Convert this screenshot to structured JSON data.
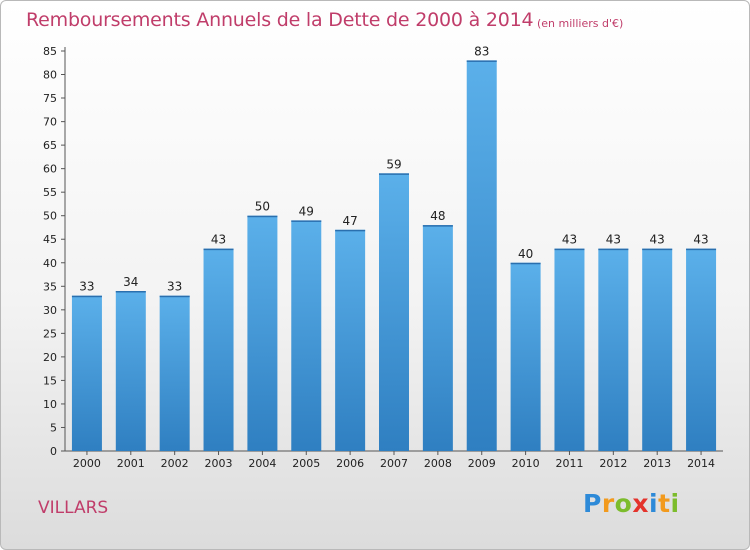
{
  "chart_data": {
    "type": "bar",
    "title": "Remboursements Annuels de la Dette de 2000 à 2014",
    "subtitle": "(en milliers d'€)",
    "categories": [
      "2000",
      "2001",
      "2002",
      "2003",
      "2004",
      "2005",
      "2006",
      "2007",
      "2008",
      "2009",
      "2010",
      "2011",
      "2012",
      "2013",
      "2014"
    ],
    "values": [
      33,
      34,
      33,
      43,
      50,
      49,
      47,
      59,
      48,
      83,
      40,
      43,
      43,
      43,
      43
    ],
    "ylim": [
      0,
      85
    ],
    "yticks": [
      "0",
      "5",
      "10",
      "15",
      "20",
      "25",
      "30",
      "35",
      "40",
      "45",
      "50",
      "55",
      "60",
      "65",
      "70",
      "75",
      "80",
      "85"
    ],
    "grid": false,
    "colors": {
      "bar_top": "#5bb0ea",
      "bar_bottom": "#2f7fc1",
      "text": "#c03d6a"
    }
  },
  "place_name": "VILLARS",
  "logo": {
    "letters": [
      "P",
      "r",
      "o",
      "x",
      "i",
      "t",
      "i"
    ],
    "colors": [
      "#2d8ad8",
      "#f29a1d",
      "#7cbc2c",
      "#e4332c",
      "#2d8ad8",
      "#f29a1d",
      "#7cbc2c"
    ]
  }
}
